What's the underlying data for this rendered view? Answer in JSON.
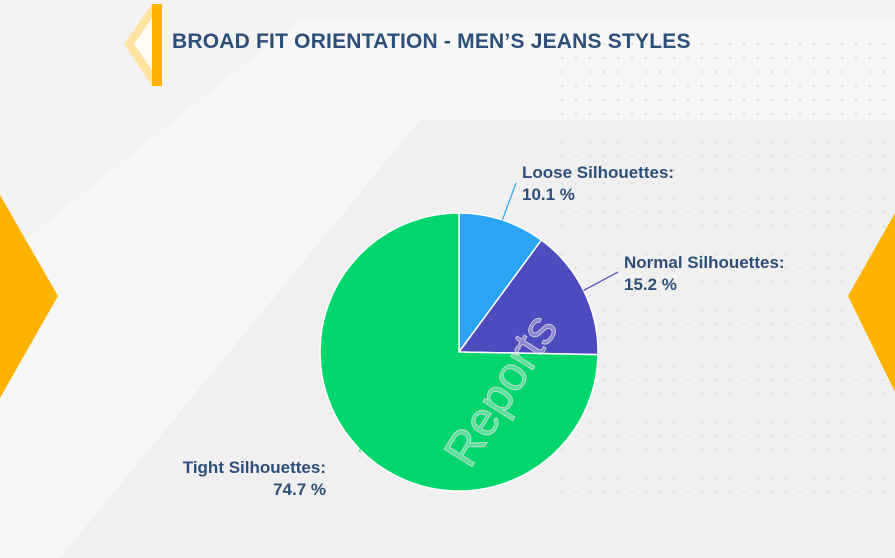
{
  "title": "BROAD FIT ORIENTATION - MEN’S JEANS STYLES",
  "watermark": "Reports",
  "colors": {
    "title": "#2d4f7a",
    "accent": "#ffb300",
    "loose": "#2aa4f4",
    "normal": "#4e4bbf",
    "tight": "#00d66b"
  },
  "chart_data": {
    "type": "pie",
    "title": "BROAD FIT ORIENTATION - MEN’S JEANS STYLES",
    "slices": [
      {
        "name": "Loose Silhouettes:",
        "value": 10.1,
        "value_label": "10.1 %",
        "color": "#2aa4f4"
      },
      {
        "name": "Normal Silhouettes:",
        "value": 15.2,
        "value_label": "15.2 %",
        "color": "#4e4bbf"
      },
      {
        "name": "Tight Silhouettes:",
        "value": 74.7,
        "value_label": "74.7 %",
        "color": "#00d66b"
      }
    ],
    "start_angle": "12 o'clock",
    "direction": "clockwise",
    "legend": "none (callout labels)"
  }
}
